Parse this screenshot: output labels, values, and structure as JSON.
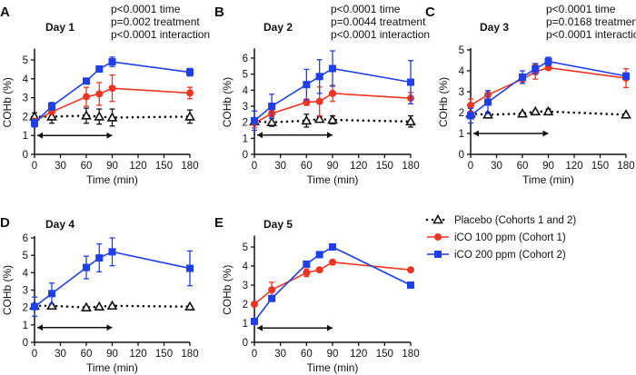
{
  "colors": {
    "placebo": "#111111",
    "co100": "#ee3524",
    "co200": "#1f3fe8"
  },
  "legend": [
    {
      "key": "placebo",
      "label": "Placebo (Cohorts 1 and 2)",
      "marker": "open-triangle",
      "line": "dotted"
    },
    {
      "key": "co100",
      "label": "iCO 100 ppm (Cohort 1)",
      "marker": "circle",
      "line": "solid"
    },
    {
      "key": "co200",
      "label": "iCO 200 ppm (Cohort 2)",
      "marker": "square",
      "line": "solid"
    }
  ],
  "chart_data": [
    {
      "panel": "A",
      "type": "line",
      "title": "Day 1",
      "xlabel": "Time (min)",
      "ylabel": "COHb (%)",
      "pvalues": [
        "p<0.0001 time",
        "p=0.002 treatment",
        "p<0.0001 interaction"
      ],
      "xticks": [
        0,
        30,
        60,
        90,
        120,
        150,
        180
      ],
      "yticks": [
        0,
        1,
        2,
        3,
        4,
        5
      ],
      "ylim": [
        0,
        5.5
      ],
      "xlim": [
        0,
        180
      ],
      "arrow": {
        "from": 0,
        "to": 90,
        "y": 1
      },
      "x": [
        0,
        20,
        60,
        75,
        90,
        180
      ],
      "series": [
        {
          "key": "placebo",
          "values": [
            2.0,
            2.0,
            2.05,
            2.0,
            1.95,
            2.0
          ],
          "err": [
            0.2,
            0.35,
            0.4,
            0.4,
            0.45,
            0.35
          ]
        },
        {
          "key": "co100",
          "values": [
            1.75,
            2.25,
            3.05,
            3.2,
            3.5,
            3.25
          ],
          "err": [
            0.15,
            0.1,
            0.5,
            0.6,
            0.7,
            0.3
          ]
        },
        {
          "key": "co200",
          "values": [
            1.65,
            2.55,
            3.88,
            4.52,
            4.9,
            4.35
          ],
          "err": [
            0.2,
            0.2,
            0.1,
            0.08,
            0.25,
            0.2
          ]
        }
      ]
    },
    {
      "panel": "B",
      "type": "line",
      "title": "Day 2",
      "xlabel": "Time (min)",
      "ylabel": "COHb (%)",
      "pvalues": [
        "p<0.0001 time",
        "p=0.0044 treatment",
        "p<0.0001 interaction"
      ],
      "xticks": [
        0,
        30,
        60,
        90,
        120,
        150,
        180
      ],
      "yticks": [
        0,
        1,
        2,
        3,
        4,
        5,
        6
      ],
      "ylim": [
        0,
        6.5
      ],
      "xlim": [
        0,
        180
      ],
      "arrow": {
        "from": 0,
        "to": 90,
        "y": 1.2
      },
      "x": [
        0,
        20,
        60,
        75,
        90,
        180
      ],
      "series": [
        {
          "key": "placebo",
          "values": [
            2.05,
            2.0,
            2.1,
            2.2,
            2.15,
            2.05
          ],
          "err": [
            0.2,
            0.25,
            0.4,
            0.15,
            0.25,
            0.35
          ]
        },
        {
          "key": "co100",
          "values": [
            1.95,
            2.55,
            3.25,
            3.3,
            3.8,
            3.5
          ],
          "err": [
            0.3,
            0.2,
            0.2,
            0.9,
            0.5,
            0.35
          ]
        },
        {
          "key": "co200",
          "values": [
            2.1,
            3.0,
            4.35,
            4.85,
            5.35,
            4.5
          ],
          "err": [
            0.6,
            0.75,
            0.95,
            1.05,
            1.1,
            1.35
          ]
        }
      ]
    },
    {
      "panel": "C",
      "type": "line",
      "title": "Day 3",
      "xlabel": "Time (min)",
      "ylabel": "COHb (%)",
      "pvalues": [
        "p<0.0001 time",
        "p=0.0168 treatment",
        "p<0.0001 interaction"
      ],
      "xticks": [
        0,
        30,
        60,
        90,
        120,
        150,
        180
      ],
      "yticks": [
        0,
        1,
        2,
        3,
        4,
        5
      ],
      "ylim": [
        0,
        5
      ],
      "xlim": [
        0,
        180
      ],
      "arrow": {
        "from": 0,
        "to": 90,
        "y": 1
      },
      "x": [
        0,
        20,
        60,
        75,
        90,
        180
      ],
      "series": [
        {
          "key": "placebo",
          "values": [
            1.95,
            1.9,
            1.95,
            2.05,
            2.05,
            1.9
          ],
          "err": [
            0.1,
            0.1,
            0.05,
            0.05,
            0.12,
            0.05
          ]
        },
        {
          "key": "co100",
          "values": [
            2.35,
            2.85,
            3.6,
            3.95,
            4.15,
            3.65
          ],
          "err": [
            0.3,
            0.2,
            0.2,
            0.35,
            0.1,
            0.45
          ]
        },
        {
          "key": "co200",
          "values": [
            1.85,
            2.5,
            3.7,
            4.1,
            4.45,
            3.75
          ],
          "err": [
            0.35,
            0.55,
            0.3,
            0.25,
            0.2,
            0.15
          ]
        }
      ]
    },
    {
      "panel": "D",
      "type": "line",
      "title": "Day 4",
      "xlabel": "Time (min)",
      "ylabel": "COHb (%)",
      "pvalues": [],
      "xticks": [
        0,
        30,
        60,
        90,
        120,
        150,
        180
      ],
      "yticks": [
        0,
        1,
        2,
        3,
        4,
        5,
        6
      ],
      "ylim": [
        0,
        6
      ],
      "xlim": [
        0,
        180
      ],
      "arrow": {
        "from": 0,
        "to": 90,
        "y": 0.85
      },
      "x": [
        0,
        20,
        60,
        75,
        90,
        180
      ],
      "series": [
        {
          "key": "placebo",
          "values": [
            2.1,
            2.1,
            2.0,
            2.05,
            2.1,
            2.05
          ],
          "err": [
            0.05,
            0.05,
            0.05,
            0.05,
            0.05,
            0.05
          ]
        },
        {
          "key": "co200",
          "values": [
            2.05,
            2.8,
            4.3,
            4.85,
            5.2,
            4.25
          ],
          "err": [
            0.55,
            0.6,
            0.65,
            0.8,
            0.8,
            1.0
          ]
        }
      ]
    },
    {
      "panel": "E",
      "type": "line",
      "title": "Day 5",
      "xlabel": "Time (min)",
      "ylabel": "COHb (%)",
      "pvalues": [],
      "xticks": [
        0,
        30,
        60,
        90,
        120,
        150,
        180
      ],
      "yticks": [
        0,
        1,
        2,
        3,
        4,
        5
      ],
      "ylim": [
        0,
        5.5
      ],
      "xlim": [
        0,
        180
      ],
      "arrow": {
        "from": 0,
        "to": 90,
        "y": 0.75
      },
      "x": [
        0,
        20,
        60,
        75,
        90,
        180
      ],
      "series": [
        {
          "key": "co100",
          "values": [
            2.0,
            2.75,
            3.65,
            3.8,
            4.2,
            3.8
          ],
          "err": [
            0,
            0.4,
            0.2,
            0,
            0,
            0
          ]
        },
        {
          "key": "co200",
          "values": [
            1.1,
            2.3,
            4.1,
            4.6,
            5.0,
            3.0
          ],
          "err": [
            0,
            0,
            0,
            0,
            0,
            0
          ]
        }
      ]
    }
  ]
}
